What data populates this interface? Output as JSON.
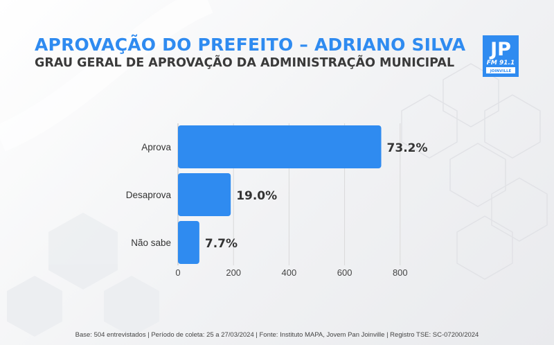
{
  "header": {
    "title": "APROVAÇÃO DO PREFEITO – ADRIANO SILVA",
    "subtitle": "GRAU GERAL DE APROVAÇÃO DA ADMINISTRAÇÃO MUNICIPAL"
  },
  "logo": {
    "text_main": "JP",
    "text_fm": "FM 91.1",
    "text_city": "JOINVILLE",
    "color": "#2f8bf0"
  },
  "chart_data": {
    "type": "bar",
    "orientation": "horizontal",
    "categories": [
      "Aprova",
      "Desaprova",
      "Não sabe"
    ],
    "values": [
      73.2,
      19.0,
      7.7
    ],
    "data_labels": [
      "73.2%",
      "19.0%",
      "7.7%"
    ],
    "x_axis_ticks": [
      0,
      200,
      400,
      600,
      800
    ],
    "grid": "vertical",
    "bar_color": "#2f8bf0"
  },
  "footer": {
    "text": "Base: 504 entrevistados | Período de coleta: 25 a 27/03/2024 | Fonte: Instituto MAPA, Jovem Pan Joinville | Registro TSE: SC-07200/2024"
  }
}
